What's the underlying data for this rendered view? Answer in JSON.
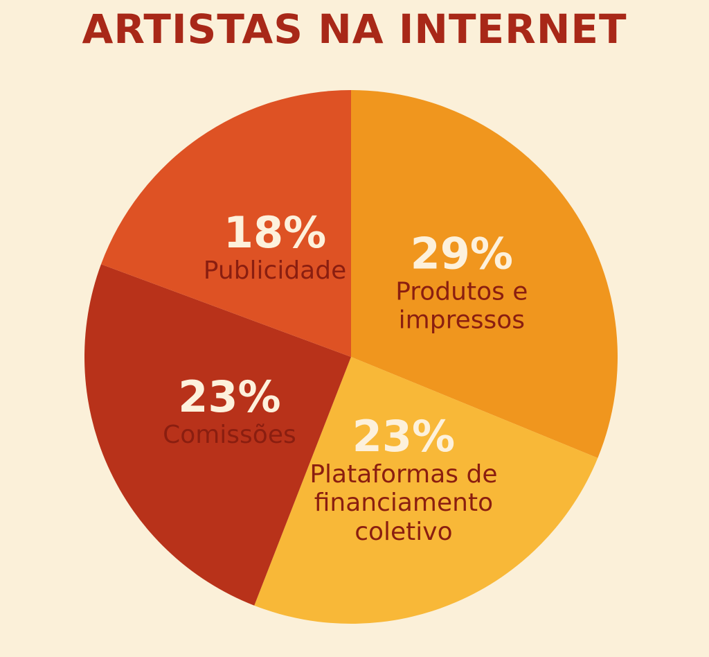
{
  "chart_data": {
    "type": "pie",
    "title": "ARTISTAS NA INTERNET",
    "categories": [
      "Produtos e impressos",
      "Plataformas de financiamento coletivo",
      "Comissões",
      "Publicidade"
    ],
    "values": [
      29,
      23,
      23,
      18
    ],
    "value_labels": [
      "29%",
      "23%",
      "23%",
      "18%"
    ],
    "colors": [
      "#f0961e",
      "#f8b838",
      "#b8321a",
      "#de5224"
    ]
  }
}
